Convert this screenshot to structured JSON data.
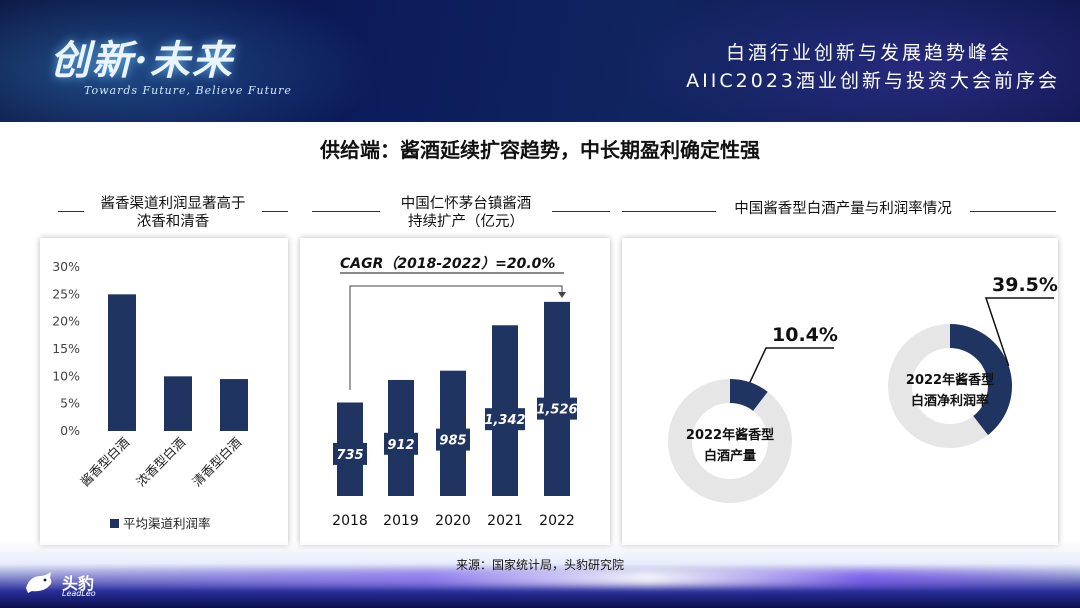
{
  "header": {
    "logo_main": "创新·未来",
    "logo_sub": "Towards Future, Believe Future",
    "event_line1": "白酒行业创新与发展趋势峰会",
    "event_line2": "AIIC2023酒业创新与投资大会前序会"
  },
  "slide_title": "供给端：酱酒延续扩容趋势，中长期盈利确定性强",
  "panels": {
    "left_title_line1": "酱香渠道利润显著高于",
    "left_title_line2": "浓香和清香",
    "middle_title_line1": "中国仁怀茅台镇酱酒",
    "middle_title_line2": "持续扩产（亿元）",
    "right_title": "中国酱香型白酒产量与利润率情况"
  },
  "footer": {
    "source": "来源：国家统计局，头豹研究院",
    "brand_name": "头豹",
    "brand_sub": "LeadLeo"
  },
  "colors": {
    "navy": "#1f3461",
    "ring_gray": "#e6e6e6",
    "header_bg": "#0c1b5c"
  },
  "chart_data": [
    {
      "type": "bar",
      "categories": [
        "酱香型白酒",
        "浓香型白酒",
        "清香型白酒"
      ],
      "series": [
        {
          "name": "平均渠道利润率",
          "values": [
            0.25,
            0.1,
            0.095
          ]
        }
      ],
      "yticks": [
        "0%",
        "5%",
        "10%",
        "15%",
        "20%",
        "25%",
        "30%"
      ],
      "ylim": [
        0,
        0.3
      ],
      "legend": "bottom"
    },
    {
      "type": "bar",
      "categories": [
        "2018",
        "2019",
        "2020",
        "2021",
        "2022"
      ],
      "values": [
        735,
        912,
        985,
        1342,
        1526
      ],
      "data_labels": [
        "735",
        "912",
        "985",
        "1,342",
        "1,526"
      ],
      "annotation": "CAGR（2018-2022）=20.0%",
      "ylim": [
        0,
        1800
      ]
    },
    {
      "type": "pie",
      "donuts": [
        {
          "label_line1": "2022年酱香型",
          "label_line2": "白酒产量",
          "value": 0.104,
          "value_label": "10.4%"
        },
        {
          "label_line1": "2022年酱香型",
          "label_line2": "白酒净利润率",
          "value": 0.395,
          "value_label": "39.5%"
        }
      ]
    }
  ]
}
